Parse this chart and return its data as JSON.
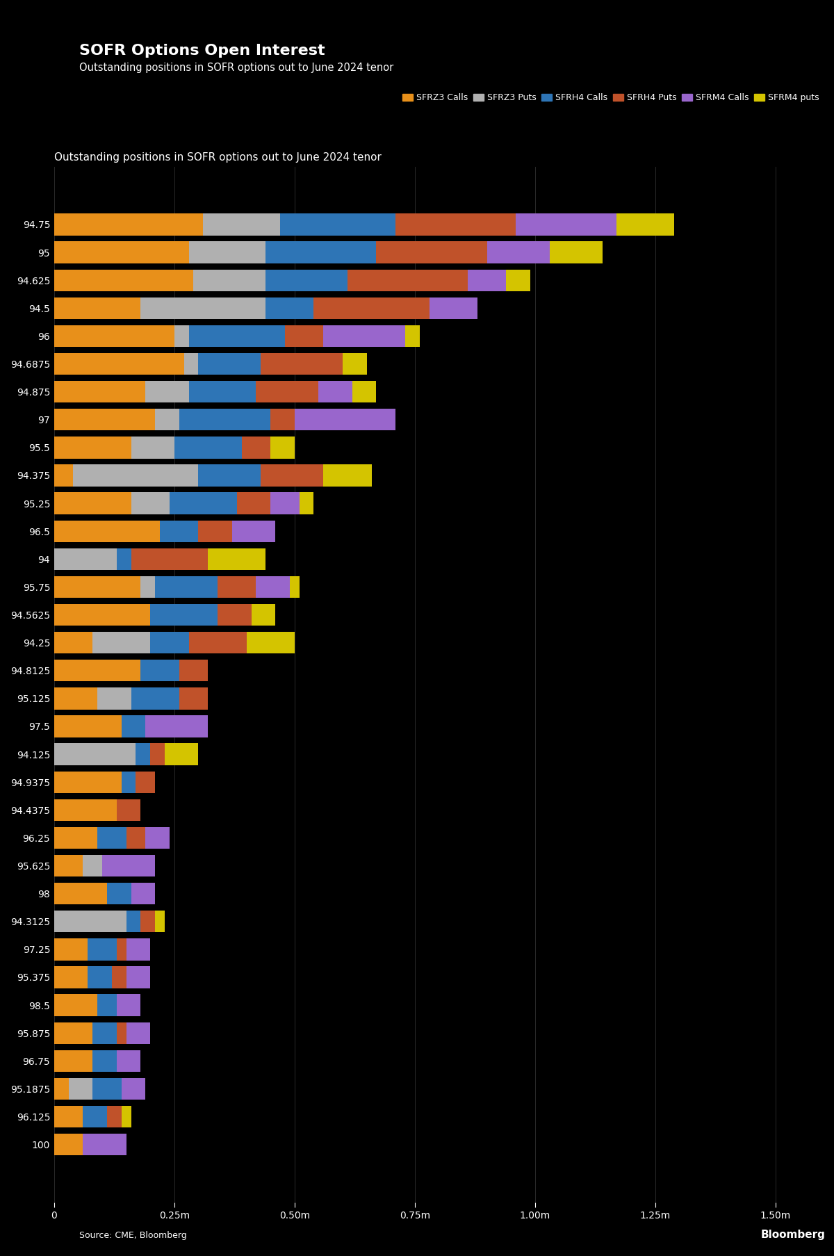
{
  "title": "SOFR Options Open Interest",
  "subtitle": "Outstanding positions in SOFR options out to June 2024 tenor",
  "source": "Source: CME, Bloomberg",
  "background_color": "#000000",
  "text_color": "#ffffff",
  "colors": {
    "SFRZ3_Calls": "#E8901A",
    "SFRZ3_Puts": "#B0B0B0",
    "SFRH4_Calls": "#2E75B6",
    "SFRH4_Puts": "#C0522A",
    "SFRM4_Calls": "#9966CC",
    "SFRM4_Puts": "#D4C400"
  },
  "legend_labels": [
    "SFRZ3 Calls",
    "SFRZ3 Puts",
    "SFRH4 Calls",
    "SFRH4 Puts",
    "SFRM4 Calls",
    "SFRM4 puts"
  ],
  "xlim": [
    0,
    1600000
  ],
  "xticks": [
    0,
    250000,
    500000,
    750000,
    1000000,
    1250000,
    1500000
  ],
  "xticklabels": [
    "0",
    "0.25m",
    "0.50m",
    "0.75m",
    "1.00m",
    "1.25m",
    "1.50m"
  ],
  "bars": [
    {
      "label": "94.75",
      "SFRZ3_Calls": 310000,
      "SFRZ3_Puts": 160000,
      "SFRH4_Calls": 240000,
      "SFRH4_Puts": 250000,
      "SFRM4_Calls": 210000,
      "SFRM4_Puts": 120000
    },
    {
      "label": "95",
      "SFRZ3_Calls": 280000,
      "SFRZ3_Puts": 160000,
      "SFRH4_Calls": 230000,
      "SFRH4_Puts": 230000,
      "SFRM4_Calls": 130000,
      "SFRM4_Puts": 110000
    },
    {
      "label": "94.625",
      "SFRZ3_Calls": 290000,
      "SFRZ3_Puts": 150000,
      "SFRH4_Calls": 170000,
      "SFRH4_Puts": 250000,
      "SFRM4_Calls": 80000,
      "SFRM4_Puts": 50000
    },
    {
      "label": "94.5",
      "SFRZ3_Calls": 180000,
      "SFRZ3_Puts": 260000,
      "SFRH4_Calls": 100000,
      "SFRH4_Puts": 240000,
      "SFRM4_Calls": 100000,
      "SFRM4_Puts": 0
    },
    {
      "label": "96",
      "SFRZ3_Calls": 250000,
      "SFRZ3_Puts": 30000,
      "SFRH4_Calls": 200000,
      "SFRH4_Puts": 80000,
      "SFRM4_Calls": 170000,
      "SFRM4_Puts": 30000
    },
    {
      "label": "94.6875",
      "SFRZ3_Calls": 270000,
      "SFRZ3_Puts": 30000,
      "SFRH4_Calls": 130000,
      "SFRH4_Puts": 170000,
      "SFRM4_Calls": 0,
      "SFRM4_Puts": 50000
    },
    {
      "label": "94.875",
      "SFRZ3_Calls": 190000,
      "SFRZ3_Puts": 90000,
      "SFRH4_Calls": 140000,
      "SFRH4_Puts": 130000,
      "SFRM4_Calls": 70000,
      "SFRM4_Puts": 50000
    },
    {
      "label": "97",
      "SFRZ3_Calls": 210000,
      "SFRZ3_Puts": 50000,
      "SFRH4_Calls": 190000,
      "SFRH4_Puts": 50000,
      "SFRM4_Calls": 210000,
      "SFRM4_Puts": 0
    },
    {
      "label": "95.5",
      "SFRZ3_Calls": 160000,
      "SFRZ3_Puts": 90000,
      "SFRH4_Calls": 140000,
      "SFRH4_Puts": 60000,
      "SFRM4_Calls": 0,
      "SFRM4_Puts": 50000
    },
    {
      "label": "94.375",
      "SFRZ3_Calls": 40000,
      "SFRZ3_Puts": 260000,
      "SFRH4_Calls": 130000,
      "SFRH4_Puts": 130000,
      "SFRM4_Calls": 0,
      "SFRM4_Puts": 100000
    },
    {
      "label": "95.25",
      "SFRZ3_Calls": 160000,
      "SFRZ3_Puts": 80000,
      "SFRH4_Calls": 140000,
      "SFRH4_Puts": 70000,
      "SFRM4_Calls": 60000,
      "SFRM4_Puts": 30000
    },
    {
      "label": "96.5",
      "SFRZ3_Calls": 220000,
      "SFRZ3_Puts": 0,
      "SFRH4_Calls": 80000,
      "SFRH4_Puts": 70000,
      "SFRM4_Calls": 90000,
      "SFRM4_Puts": 0
    },
    {
      "label": "94",
      "SFRZ3_Calls": 0,
      "SFRZ3_Puts": 130000,
      "SFRH4_Calls": 30000,
      "SFRH4_Puts": 160000,
      "SFRM4_Calls": 0,
      "SFRM4_Puts": 120000
    },
    {
      "label": "95.75",
      "SFRZ3_Calls": 180000,
      "SFRZ3_Puts": 30000,
      "SFRH4_Calls": 130000,
      "SFRH4_Puts": 80000,
      "SFRM4_Calls": 70000,
      "SFRM4_Puts": 20000
    },
    {
      "label": "94.5625",
      "SFRZ3_Calls": 200000,
      "SFRZ3_Puts": 0,
      "SFRH4_Calls": 140000,
      "SFRH4_Puts": 70000,
      "SFRM4_Calls": 0,
      "SFRM4_Puts": 50000
    },
    {
      "label": "94.25",
      "SFRZ3_Calls": 80000,
      "SFRZ3_Puts": 120000,
      "SFRH4_Calls": 80000,
      "SFRH4_Puts": 120000,
      "SFRM4_Calls": 0,
      "SFRM4_Puts": 100000
    },
    {
      "label": "94.8125",
      "SFRZ3_Calls": 180000,
      "SFRZ3_Puts": 0,
      "SFRH4_Calls": 80000,
      "SFRH4_Puts": 60000,
      "SFRM4_Calls": 0,
      "SFRM4_Puts": 0
    },
    {
      "label": "95.125",
      "SFRZ3_Calls": 90000,
      "SFRZ3_Puts": 70000,
      "SFRH4_Calls": 100000,
      "SFRH4_Puts": 60000,
      "SFRM4_Calls": 0,
      "SFRM4_Puts": 0
    },
    {
      "label": "97.5",
      "SFRZ3_Calls": 140000,
      "SFRZ3_Puts": 0,
      "SFRH4_Calls": 50000,
      "SFRH4_Puts": 0,
      "SFRM4_Calls": 130000,
      "SFRM4_Puts": 0
    },
    {
      "label": "94.125",
      "SFRZ3_Calls": 0,
      "SFRZ3_Puts": 170000,
      "SFRH4_Calls": 30000,
      "SFRH4_Puts": 30000,
      "SFRM4_Calls": 0,
      "SFRM4_Puts": 70000
    },
    {
      "label": "94.9375",
      "SFRZ3_Calls": 140000,
      "SFRZ3_Puts": 0,
      "SFRH4_Calls": 30000,
      "SFRH4_Puts": 40000,
      "SFRM4_Calls": 0,
      "SFRM4_Puts": 0
    },
    {
      "label": "94.4375",
      "SFRZ3_Calls": 130000,
      "SFRZ3_Puts": 0,
      "SFRH4_Calls": 0,
      "SFRH4_Puts": 50000,
      "SFRM4_Calls": 0,
      "SFRM4_Puts": 0
    },
    {
      "label": "96.25",
      "SFRZ3_Calls": 90000,
      "SFRZ3_Puts": 0,
      "SFRH4_Calls": 60000,
      "SFRH4_Puts": 40000,
      "SFRM4_Calls": 50000,
      "SFRM4_Puts": 0
    },
    {
      "label": "95.625",
      "SFRZ3_Calls": 60000,
      "SFRZ3_Puts": 40000,
      "SFRH4_Calls": 0,
      "SFRH4_Puts": 0,
      "SFRM4_Calls": 110000,
      "SFRM4_Puts": 0
    },
    {
      "label": "98",
      "SFRZ3_Calls": 110000,
      "SFRZ3_Puts": 0,
      "SFRH4_Calls": 50000,
      "SFRH4_Puts": 0,
      "SFRM4_Calls": 50000,
      "SFRM4_Puts": 0
    },
    {
      "label": "94.3125",
      "SFRZ3_Calls": 0,
      "SFRZ3_Puts": 150000,
      "SFRH4_Calls": 30000,
      "SFRH4_Puts": 30000,
      "SFRM4_Calls": 0,
      "SFRM4_Puts": 20000
    },
    {
      "label": "97.25",
      "SFRZ3_Calls": 70000,
      "SFRZ3_Puts": 0,
      "SFRH4_Calls": 60000,
      "SFRH4_Puts": 20000,
      "SFRM4_Calls": 50000,
      "SFRM4_Puts": 0
    },
    {
      "label": "95.375",
      "SFRZ3_Calls": 70000,
      "SFRZ3_Puts": 0,
      "SFRH4_Calls": 50000,
      "SFRH4_Puts": 30000,
      "SFRM4_Calls": 50000,
      "SFRM4_Puts": 0
    },
    {
      "label": "98.5",
      "SFRZ3_Calls": 90000,
      "SFRZ3_Puts": 0,
      "SFRH4_Calls": 40000,
      "SFRH4_Puts": 0,
      "SFRM4_Calls": 50000,
      "SFRM4_Puts": 0
    },
    {
      "label": "95.875",
      "SFRZ3_Calls": 80000,
      "SFRZ3_Puts": 0,
      "SFRH4_Calls": 50000,
      "SFRH4_Puts": 20000,
      "SFRM4_Calls": 50000,
      "SFRM4_Puts": 0
    },
    {
      "label": "96.75",
      "SFRZ3_Calls": 80000,
      "SFRZ3_Puts": 0,
      "SFRH4_Calls": 50000,
      "SFRH4_Puts": 0,
      "SFRM4_Calls": 50000,
      "SFRM4_Puts": 0
    },
    {
      "label": "95.1875",
      "SFRZ3_Calls": 30000,
      "SFRZ3_Puts": 50000,
      "SFRH4_Calls": 60000,
      "SFRH4_Puts": 0,
      "SFRM4_Calls": 50000,
      "SFRM4_Puts": 0
    },
    {
      "label": "96.125",
      "SFRZ3_Calls": 60000,
      "SFRZ3_Puts": 0,
      "SFRH4_Calls": 50000,
      "SFRH4_Puts": 30000,
      "SFRM4_Calls": 0,
      "SFRM4_Puts": 20000
    },
    {
      "label": "100",
      "SFRZ3_Calls": 60000,
      "SFRZ3_Puts": 0,
      "SFRH4_Calls": 0,
      "SFRH4_Puts": 0,
      "SFRM4_Calls": 90000,
      "SFRM4_Puts": 0
    }
  ]
}
